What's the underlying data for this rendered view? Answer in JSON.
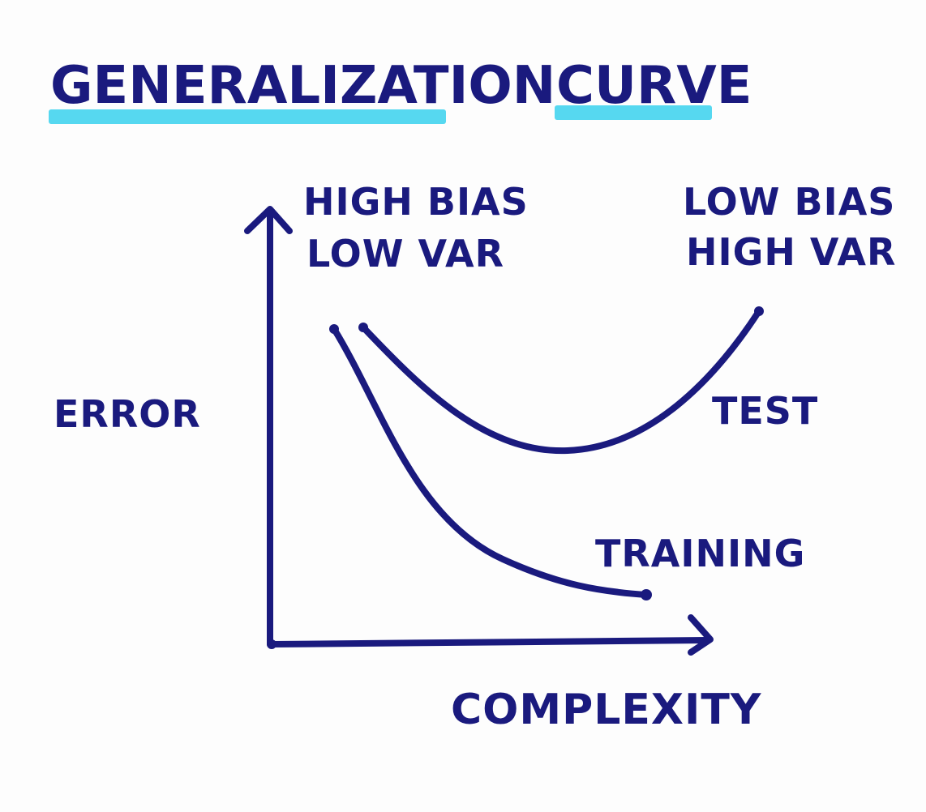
{
  "title": {
    "word1": "GENERALIZATION",
    "word2": "CURVE"
  },
  "colors": {
    "ink": "#1a1a7e",
    "highlight": "#44d4ee",
    "paper": "#fdfdfd"
  },
  "axes": {
    "y_label": "ERROR",
    "x_label": "COMPLEXITY"
  },
  "annotations": {
    "left_line1": "HIGH BIAS",
    "left_line2": "LOW VAR",
    "right_line1": "LOW BIAS",
    "right_line2": "HIGH VAR"
  },
  "curves": {
    "test_label": "TEST",
    "training_label": "TRAINING"
  }
}
